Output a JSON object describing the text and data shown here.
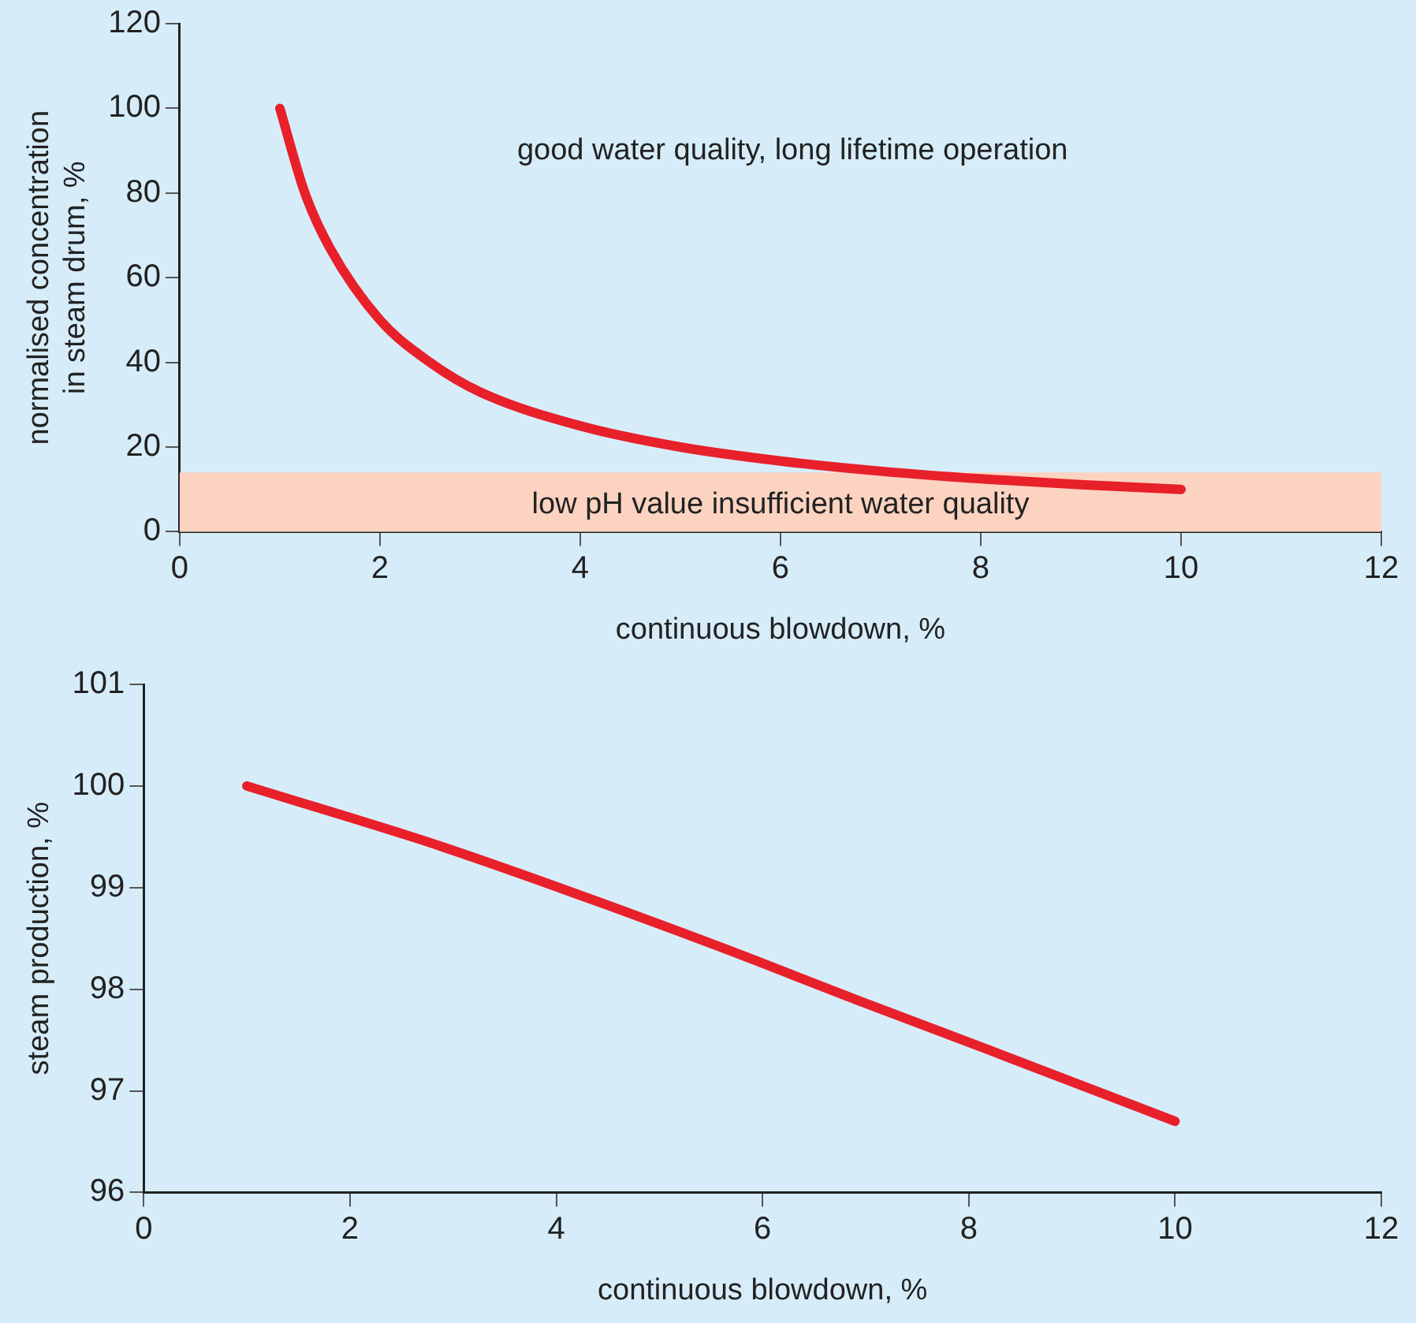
{
  "chart_data": [
    {
      "type": "line",
      "xlabel": "continuous blowdown, %",
      "ylabel": "normalised concentration in steam drum, %",
      "xlim": [
        0,
        12
      ],
      "xticks": [
        0,
        2,
        4,
        6,
        8,
        10,
        12
      ],
      "ylim": [
        0,
        120
      ],
      "yticks": [
        0,
        20,
        40,
        60,
        80,
        100,
        120
      ],
      "grid": false,
      "legend": false,
      "marker": "none",
      "line_style": "solid",
      "series": [
        {
          "color": "#e8202a",
          "x": [
            1,
            1.25,
            1.5,
            2,
            2.5,
            3,
            4,
            5,
            6,
            7,
            8,
            9,
            10
          ],
          "values": [
            100,
            80,
            67,
            50,
            40,
            33,
            25,
            20,
            16.7,
            14.3,
            12.5,
            11.1,
            10
          ]
        }
      ],
      "bands": [
        {
          "axis": "y",
          "from": 0,
          "to": 14,
          "label": "low pH value insufficient water quality",
          "color": "#fcd3c1"
        }
      ],
      "annotations": [
        "good water quality, long lifetime operation"
      ]
    },
    {
      "type": "line",
      "xlabel": "continuous blowdown, %",
      "ylabel": "steam production, %",
      "xlim": [
        0,
        12
      ],
      "xticks": [
        0,
        2,
        4,
        6,
        8,
        10,
        12
      ],
      "ylim": [
        96,
        101
      ],
      "yticks": [
        96,
        97,
        98,
        99,
        100,
        101
      ],
      "grid": false,
      "legend": false,
      "marker": "none",
      "line_style": "solid",
      "series": [
        {
          "color": "#e8202a",
          "x": [
            1,
            2.9,
            5.5,
            6.9,
            8.2,
            10
          ],
          "values": [
            100,
            99.4,
            98.45,
            97.9,
            97.4,
            96.7
          ]
        }
      ]
    }
  ]
}
